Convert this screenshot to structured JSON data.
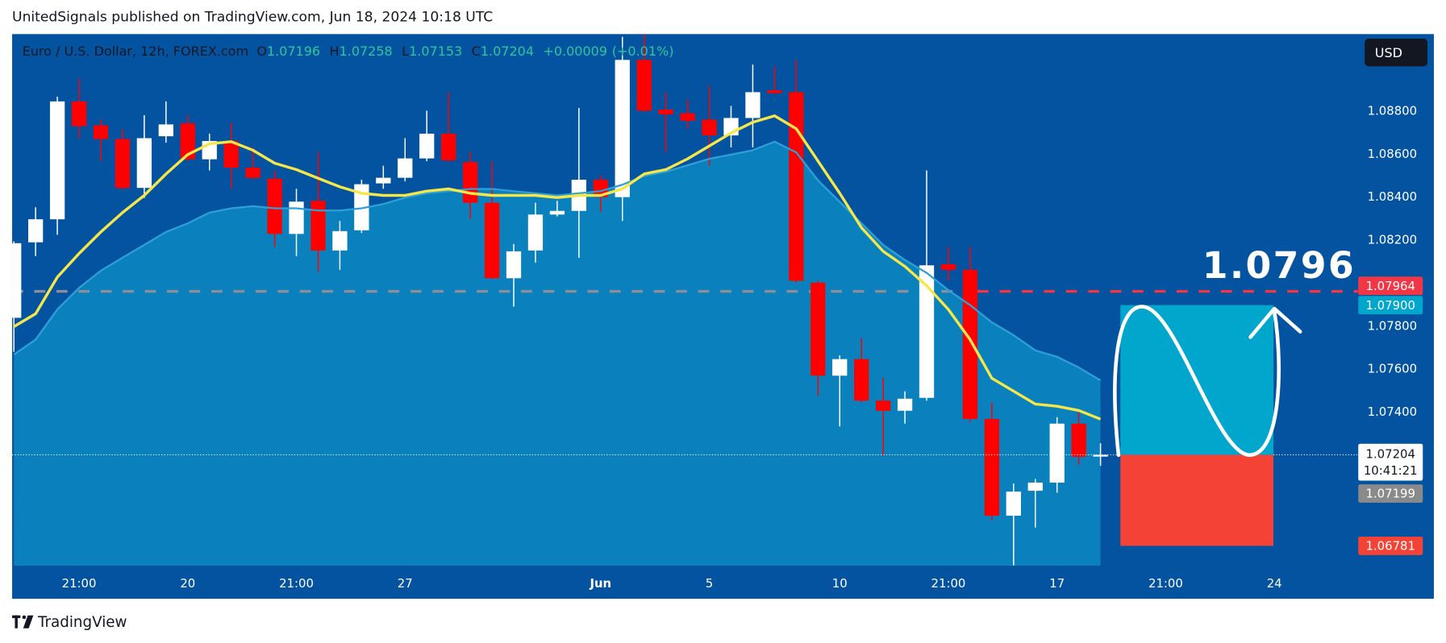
{
  "header": {
    "publisher": "UnitedSignals published on TradingView.com, Jun 18, 2024 10:18 UTC"
  },
  "chart_data": {
    "type": "candlestick",
    "title": "Euro / U.S. Dollar, 12h, FOREX.com",
    "ohlc_keys": [
      "O",
      "H",
      "L",
      "C"
    ],
    "change": {
      "value": 9e-05,
      "label": "+0.00009"
    },
    "change_pct": {
      "value": 0.01,
      "label": "(+0.01%)"
    },
    "currency": "USD",
    "open": [
      1.07841,
      1.08192,
      1.08299,
      1.08847,
      1.08736,
      1.08672,
      1.08445,
      1.08685,
      1.08745,
      1.08578,
      1.08663,
      1.08539,
      1.08488,
      1.08231,
      1.08385,
      1.08154,
      1.08248,
      1.08466,
      1.08492,
      1.08582,
      1.08697,
      1.08565,
      1.08376,
      1.08025,
      1.08154,
      1.08321,
      1.08338,
      1.08483,
      1.08402,
      1.0904,
      1.08809,
      1.08792,
      1.08762,
      1.08689,
      1.0877,
      1.08899,
      1.0889,
      1.08004,
      1.07572,
      1.07649,
      1.07456,
      1.07409,
      1.07469,
      1.0809,
      1.08064,
      1.07371,
      1.06921,
      1.07037,
      1.07075,
      1.07349,
      1.07196
    ],
    "high": [
      1.08197,
      1.08355,
      1.08869,
      1.08954,
      1.08762,
      1.08719,
      1.08783,
      1.08847,
      1.08783,
      1.08697,
      1.08749,
      1.08633,
      1.08526,
      1.08441,
      1.08612,
      1.08291,
      1.08483,
      1.08548,
      1.08676,
      1.08804,
      1.0889,
      1.08612,
      1.08569,
      1.08184,
      1.08376,
      1.08385,
      1.08817,
      1.08505,
      1.09147,
      1.09168,
      1.0889,
      1.08856,
      1.0892,
      1.08826,
      1.09018,
      1.0901,
      1.0904,
      1.08013,
      1.07666,
      1.07747,
      1.07563,
      1.07499,
      1.08526,
      1.08171,
      1.08171,
      1.07448,
      1.07071,
      1.07092,
      1.07379,
      1.07401,
      1.07258
    ],
    "low": [
      1.07683,
      1.08128,
      1.08227,
      1.08676,
      1.08569,
      1.08436,
      1.08398,
      1.08655,
      1.08569,
      1.08526,
      1.08441,
      1.08483,
      1.08171,
      1.08128,
      1.08055,
      1.08064,
      1.08235,
      1.08441,
      1.08475,
      1.08569,
      1.08565,
      1.08299,
      1.08021,
      1.07893,
      1.08098,
      1.08312,
      1.0812,
      1.08334,
      1.08291,
      1.08796,
      1.08612,
      1.08719,
      1.08548,
      1.08633,
      1.08633,
      1.08881,
      1.08004,
      1.07478,
      1.07336,
      1.07448,
      1.07199,
      1.07349,
      1.07456,
      1.08013,
      1.07358,
      1.069,
      1.0669,
      1.06866,
      1.07028,
      1.07157,
      1.07153
    ],
    "close": [
      1.08188,
      1.08299,
      1.08847,
      1.08732,
      1.08672,
      1.08445,
      1.08676,
      1.0874,
      1.08578,
      1.08663,
      1.08539,
      1.08492,
      1.08231,
      1.08381,
      1.08154,
      1.08244,
      1.08462,
      1.08492,
      1.08582,
      1.08697,
      1.08573,
      1.08376,
      1.08025,
      1.0815,
      1.08321,
      1.08338,
      1.08483,
      1.08402,
      1.0904,
      1.08804,
      1.08787,
      1.08757,
      1.08689,
      1.0877,
      1.0889,
      1.08886,
      1.08013,
      1.07572,
      1.07649,
      1.07456,
      1.07409,
      1.07465,
      1.08085,
      1.08064,
      1.07371,
      1.06921,
      1.07033,
      1.07075,
      1.07349,
      1.07195,
      1.07204
    ],
    "up_color": "#ffffff",
    "down_color": "#ff0000",
    "overlays": [
      {
        "color": "#2f9fd6",
        "fill": "#0a80bd",
        "values": [
          1.0767,
          1.0774,
          1.0788,
          1.0798,
          1.0806,
          1.0812,
          1.0818,
          1.0824,
          1.0828,
          1.0833,
          1.0835,
          1.0836,
          1.0835,
          1.0835,
          1.0834,
          1.0834,
          1.0835,
          1.0837,
          1.084,
          1.0842,
          1.0843,
          1.0844,
          1.0844,
          1.0843,
          1.0842,
          1.0841,
          1.0842,
          1.0843,
          1.0846,
          1.085,
          1.0852,
          1.0855,
          1.0858,
          1.086,
          1.0862,
          1.0866,
          1.0861,
          1.0848,
          1.0838,
          1.0828,
          1.0818,
          1.0811,
          1.0805,
          1.0797,
          1.079,
          1.0782,
          1.0776,
          1.0769,
          1.0766,
          1.0761,
          1.0755
        ]
      },
      {
        "color": "#f5e64a",
        "values": [
          1.078,
          1.0786,
          1.0803,
          1.0814,
          1.0824,
          1.0833,
          1.0841,
          1.0851,
          1.086,
          1.0865,
          1.0866,
          1.0862,
          1.0856,
          1.0853,
          1.0849,
          1.0845,
          1.0842,
          1.0841,
          1.0841,
          1.0843,
          1.0844,
          1.0842,
          1.0841,
          1.0841,
          1.0841,
          1.084,
          1.0841,
          1.0841,
          1.0844,
          1.0851,
          1.0853,
          1.0858,
          1.0864,
          1.087,
          1.0875,
          1.0878,
          1.0872,
          1.0857,
          1.0842,
          1.0826,
          1.0815,
          1.0808,
          1.0799,
          1.0788,
          1.0774,
          1.0756,
          1.075,
          1.0744,
          1.0743,
          1.0741,
          1.0737
        ]
      }
    ],
    "ylim": [
      1.06689,
      1.0916
    ],
    "yticks": [
      {
        "value": 1.088,
        "label": "1.08800"
      },
      {
        "value": 1.086,
        "label": "1.08600"
      },
      {
        "value": 1.084,
        "label": "1.08400"
      },
      {
        "value": 1.082,
        "label": "1.08200"
      },
      {
        "value": 1.078,
        "label": "1.07800"
      },
      {
        "value": 1.076,
        "label": "1.07600"
      },
      {
        "value": 1.074,
        "label": "1.07400"
      }
    ],
    "xlim": [
      -0.08,
      61.86
    ],
    "xticks": [
      {
        "value": 3,
        "label": "21:00"
      },
      {
        "value": 8,
        "label": "20"
      },
      {
        "value": 13,
        "label": "21:00"
      },
      {
        "value": 18,
        "label": "27"
      },
      {
        "value": 27,
        "label": "Jun"
      },
      {
        "value": 32,
        "label": "5"
      },
      {
        "value": 38,
        "label": "10"
      },
      {
        "value": 43,
        "label": "21:00"
      },
      {
        "value": 48,
        "label": "17"
      },
      {
        "value": 53,
        "label": "21:00"
      },
      {
        "value": 58,
        "label": "24"
      }
    ],
    "grid": false,
    "price_line": {
      "value": 1.07964,
      "colors": [
        "#8c8f99",
        "#f23645"
      ]
    },
    "annotation": "1.0796",
    "target": {
      "value": 1.079,
      "label": "1.07900",
      "color": "#00a6cc"
    },
    "stop": {
      "value": 1.06781,
      "color": "#f44336"
    },
    "countdown": "10:41:21",
    "bid": 1.07199
  },
  "footer": {
    "brand": "TradingView"
  }
}
